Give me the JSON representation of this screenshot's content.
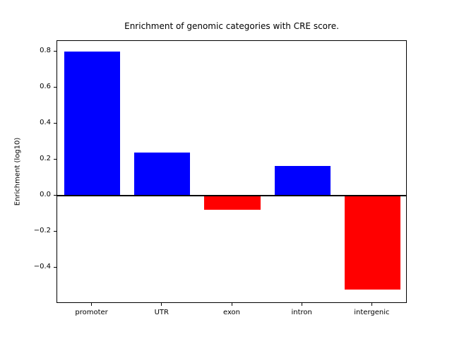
{
  "figure": {
    "background": "#ffffff"
  },
  "chart_data": {
    "type": "bar",
    "title": "Enrichment of genomic categories with CRE score.",
    "xlabel": "",
    "ylabel": "Enrichment (log10)",
    "categories": [
      "promoter",
      "UTR",
      "exon",
      "intron",
      "intergenic"
    ],
    "values": [
      0.8,
      0.24,
      -0.08,
      0.165,
      -0.52
    ],
    "positive_color": "#0000ff",
    "negative_color": "#ff0000",
    "axis_color": "#000000",
    "ylim": [
      -0.6,
      0.86
    ],
    "yticks": [
      0.8,
      0.6,
      0.4,
      0.2,
      0.0,
      -0.2,
      -0.4
    ],
    "ytick_labels": [
      "0.8",
      "0.6",
      "0.4",
      "0.2",
      "0.0",
      "−0.2",
      "−0.4"
    ],
    "grid": false,
    "zero_line": true,
    "legend_position": "none"
  }
}
